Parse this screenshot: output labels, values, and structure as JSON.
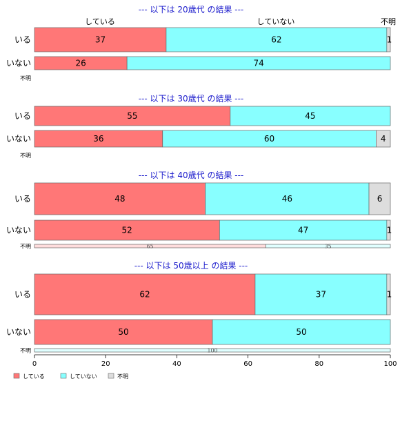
{
  "chart_data": {
    "type": "bar",
    "orientation": "horizontal",
    "stacked": "percent",
    "xlim": [
      0,
      100
    ],
    "x_ticks": [
      "0",
      "20",
      "40",
      "60",
      "80",
      "100"
    ],
    "legend": {
      "placement": "bottom-left",
      "entries": [
        {
          "label": "している",
          "color": "#FF7777"
        },
        {
          "label": "していない",
          "color": "#88FFFF"
        },
        {
          "label": "不明",
          "color": "#DDDDDD"
        }
      ]
    },
    "top_category_labels": [
      "している",
      "していない",
      "不明"
    ],
    "groups": [
      {
        "title": "--- 以下は 20歳代 の結果 ---",
        "rows": [
          {
            "label": "いる",
            "values": [
              37,
              62,
              1
            ],
            "value_labels": [
              "37",
              "62",
              "1"
            ]
          },
          {
            "label": "いない",
            "values": [
              26,
              74,
              0
            ],
            "value_labels": [
              "26",
              "74",
              ""
            ]
          },
          {
            "label": "不明",
            "values": [
              0,
              0,
              0
            ],
            "value_labels": [
              "",
              "",
              ""
            ]
          }
        ]
      },
      {
        "title": "--- 以下は 30歳代 の結果 ---",
        "rows": [
          {
            "label": "いる",
            "values": [
              55,
              45,
              0
            ],
            "value_labels": [
              "55",
              "45",
              ""
            ]
          },
          {
            "label": "いない",
            "values": [
              36,
              60,
              4
            ],
            "value_labels": [
              "36",
              "60",
              "4"
            ]
          },
          {
            "label": "不明",
            "values": [
              0,
              0,
              0
            ],
            "value_labels": [
              "",
              "",
              ""
            ]
          }
        ]
      },
      {
        "title": "--- 以下は 40歳代 の結果 ---",
        "rows": [
          {
            "label": "いる",
            "values": [
              48,
              46,
              6
            ],
            "value_labels": [
              "48",
              "46",
              "6"
            ]
          },
          {
            "label": "いない",
            "values": [
              52,
              47,
              1
            ],
            "value_labels": [
              "52",
              "47",
              "1"
            ]
          },
          {
            "label": "不明",
            "values": [
              65,
              35,
              0
            ],
            "value_labels": [
              "65",
              "35",
              ""
            ]
          }
        ]
      },
      {
        "title": "--- 以下は 50歳以上 の結果 ---",
        "rows": [
          {
            "label": "いる",
            "values": [
              62,
              37,
              1
            ],
            "value_labels": [
              "62",
              "37",
              "1"
            ]
          },
          {
            "label": "いない",
            "values": [
              50,
              50,
              0
            ],
            "value_labels": [
              "50",
              "50",
              ""
            ]
          },
          {
            "label": "不明",
            "values": [
              0,
              100,
              0
            ],
            "value_labels": [
              "",
              "100",
              ""
            ]
          }
        ]
      }
    ]
  }
}
